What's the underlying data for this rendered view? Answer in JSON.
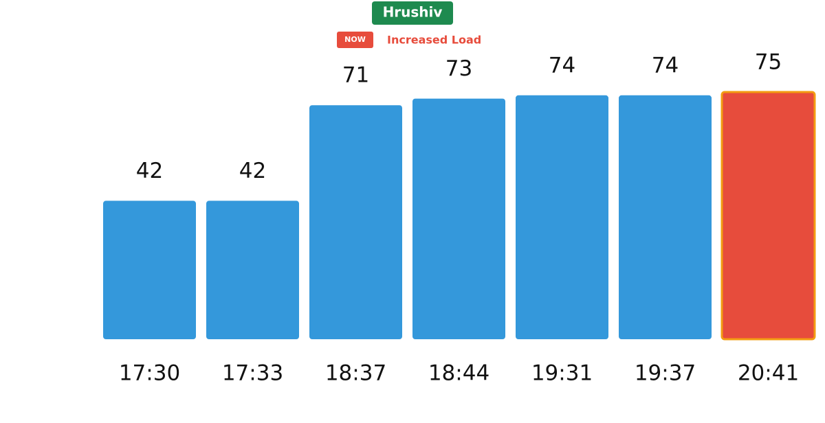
{
  "chart_data": {
    "type": "bar",
    "title": "Hrushiv",
    "badge": "NOW",
    "subtitle": "Increased Load",
    "categories": [
      "17:30",
      "17:33",
      "18:37",
      "18:44",
      "19:31",
      "19:37",
      "20:41"
    ],
    "values": [
      42,
      42,
      71,
      73,
      74,
      74,
      75
    ],
    "color": "#3498db",
    "highlight_color": "#e74c3c",
    "highlight_border": "#f39c12",
    "highlight_index": 6,
    "title_color": "#1e8a4f"
  }
}
